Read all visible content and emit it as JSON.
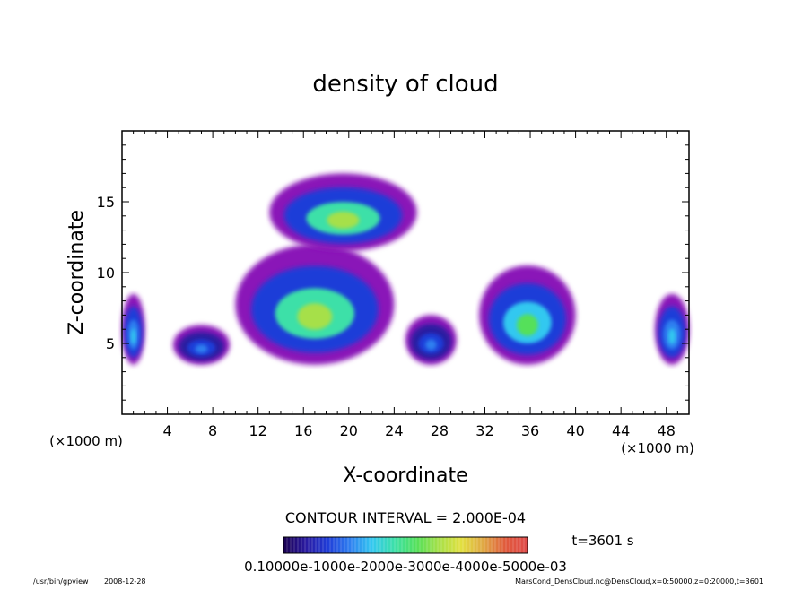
{
  "chart_data": {
    "type": "heatmap",
    "title": "density of cloud",
    "xlabel": "X-coordinate",
    "ylabel": "Z-coordinate",
    "x_unit": "(×1000 m)",
    "y_unit": "(×1000 m)",
    "xlim": [
      0,
      50
    ],
    "ylim": [
      0,
      20
    ],
    "x_ticks": [
      4,
      8,
      12,
      16,
      20,
      24,
      28,
      32,
      36,
      40,
      44,
      48
    ],
    "y_ticks": [
      5,
      10,
      15
    ],
    "grid": false,
    "contour_interval_text": "CONTOUR INTERVAL = 2.000E-04",
    "time_text": "t=3601 s",
    "colorbar_labels_text": "0.10000e-1000e-2000e-3000e-4000e-5000e-03",
    "colorbar_range": [
      0.0,
      0.001
    ],
    "colormap": [
      "#1a0050",
      "#2a1aa0",
      "#1f3dd8",
      "#2f7ff0",
      "#33c8f0",
      "#3ce0a8",
      "#54e05a",
      "#a6e048",
      "#e2e040",
      "#e0a844",
      "#e05a3c",
      "#e04a4a"
    ],
    "cloud_regions": [
      {
        "x": [
          0,
          2
        ],
        "z": [
          3.5,
          8.5
        ],
        "peak": 0.0004
      },
      {
        "x": [
          4.5,
          9.5
        ],
        "z": [
          3.5,
          6.3
        ],
        "peak": 0.0003
      },
      {
        "x": [
          10,
          24
        ],
        "z": [
          3.5,
          12
        ],
        "peak": 0.0006
      },
      {
        "x": [
          13,
          26
        ],
        "z": [
          11.5,
          17
        ],
        "peak": 0.0006
      },
      {
        "x": [
          25,
          29.5
        ],
        "z": [
          3.5,
          7
        ],
        "peak": 0.0003
      },
      {
        "x": [
          31.5,
          40
        ],
        "z": [
          3.5,
          10.5
        ],
        "peak": 0.0005
      },
      {
        "x": [
          47,
          50
        ],
        "z": [
          3.5,
          8.5
        ],
        "peak": 0.0004
      }
    ]
  },
  "footer": {
    "program": "/usr/bin/gpview",
    "date": "2008-12-28",
    "source": "MarsCond_DensCloud.nc@DensCloud,x=0:50000,z=0:20000,t=3601"
  },
  "colors": {
    "frame": "#000000",
    "background": "#ffffff"
  }
}
